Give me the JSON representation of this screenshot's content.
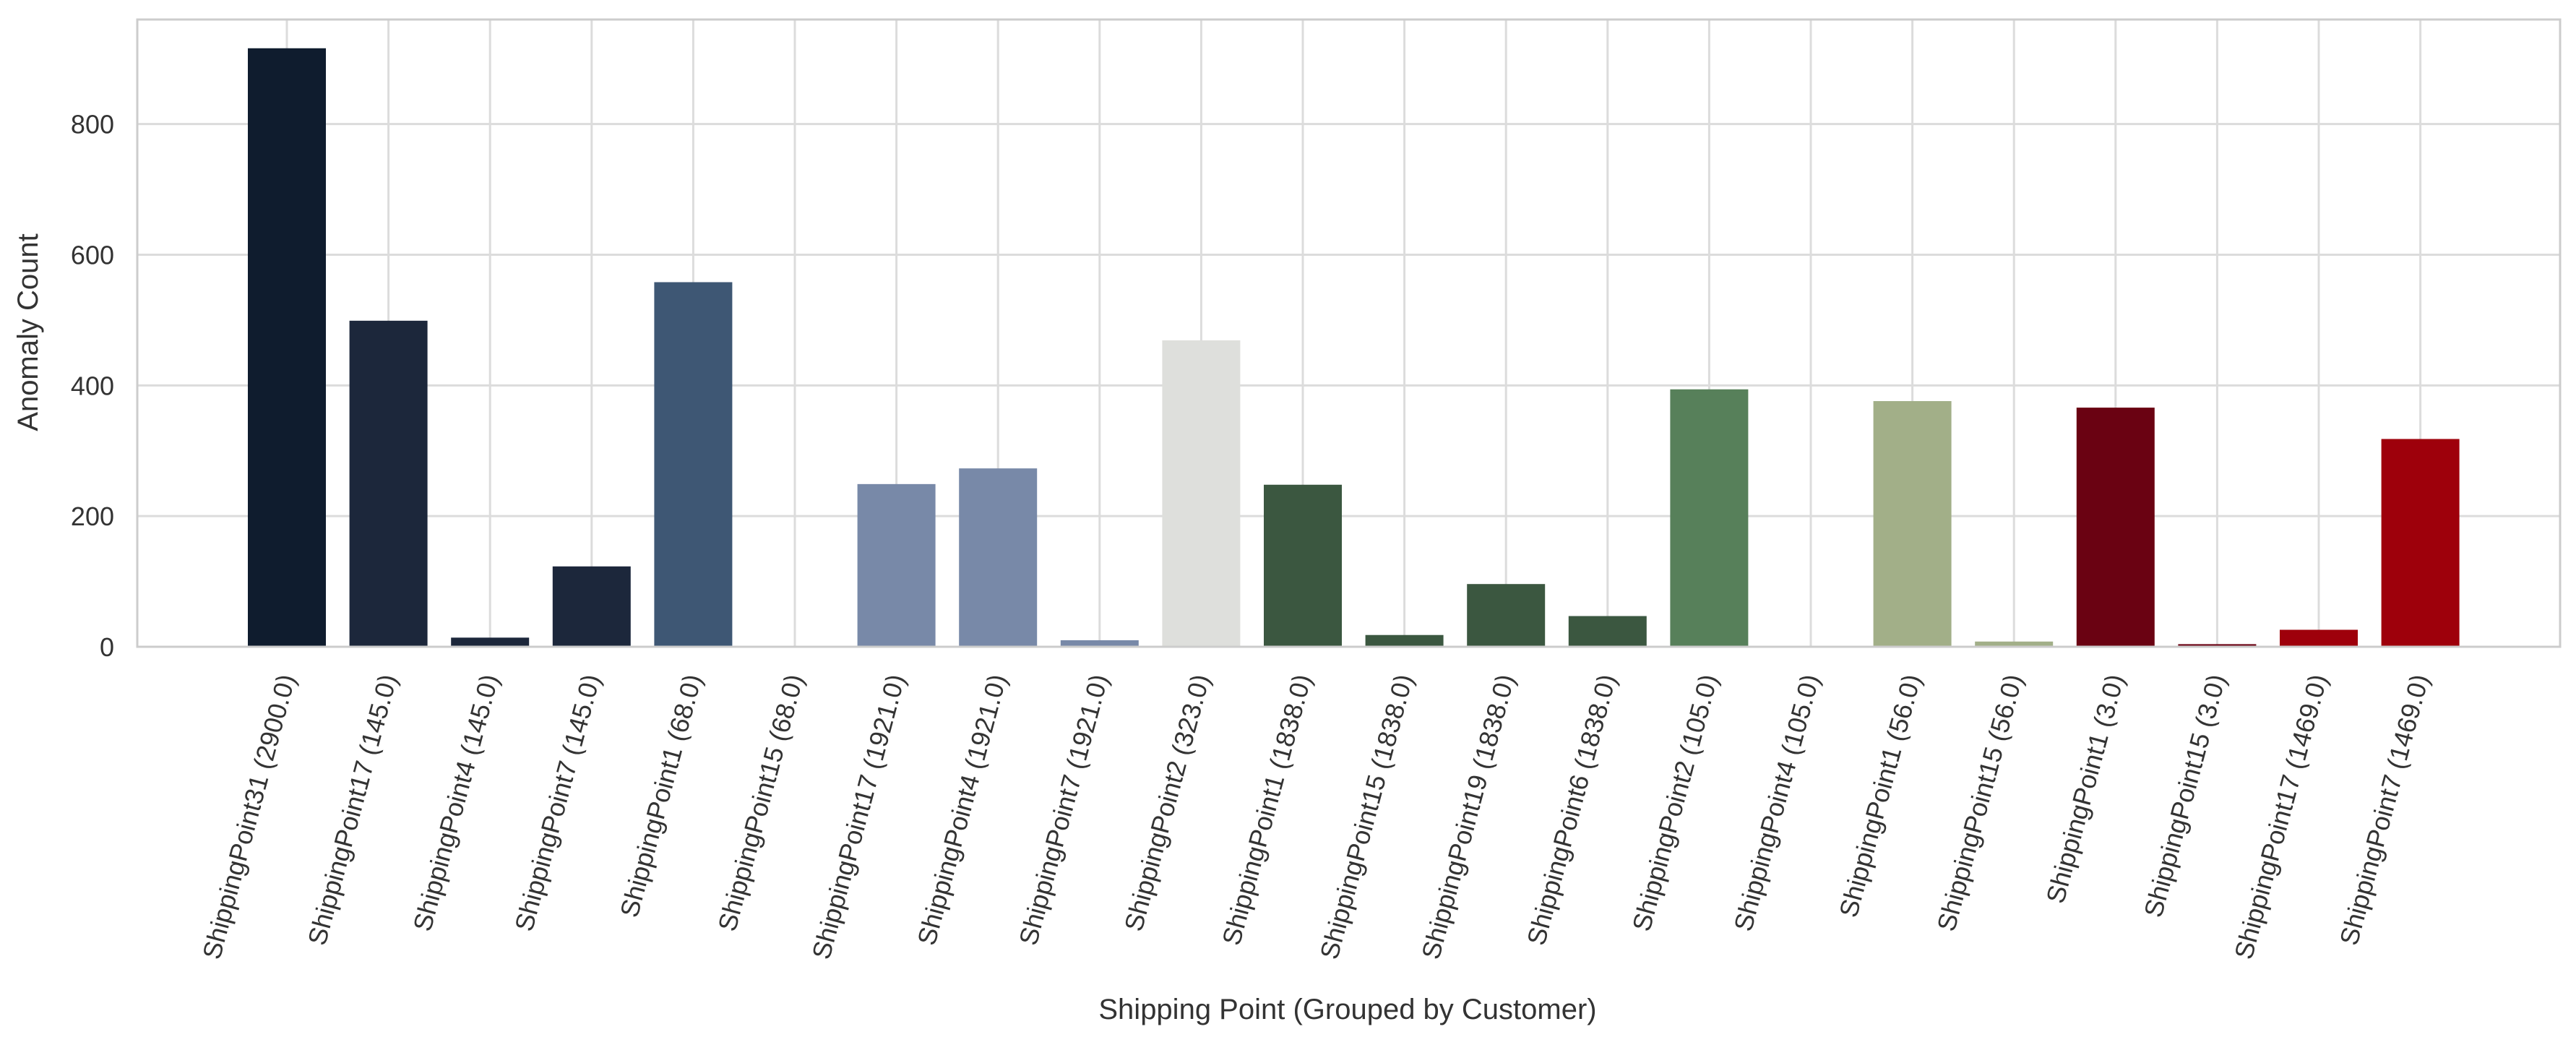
{
  "chart_data": {
    "type": "bar",
    "title": "",
    "xlabel": "Shipping Point (Grouped by Customer)",
    "ylabel": "Anomaly Count",
    "ylim": [
      0,
      960
    ],
    "yticks": [
      0,
      200,
      400,
      600,
      800
    ],
    "grid": true,
    "legend": "none",
    "categories": [
      "ShippingPoint31 (2900.0)",
      "ShippingPoint17 (145.0)",
      "ShippingPoint4 (145.0)",
      "ShippingPoint7 (145.0)",
      "ShippingPoint1 (68.0)",
      "ShippingPoint15 (68.0)",
      "ShippingPoint17 (1921.0)",
      "ShippingPoint4 (1921.0)",
      "ShippingPoint7 (1921.0)",
      "ShippingPoint2 (323.0)",
      "ShippingPoint1 (1838.0)",
      "ShippingPoint15 (1838.0)",
      "ShippingPoint19 (1838.0)",
      "ShippingPoint6 (1838.0)",
      "ShippingPoint2 (105.0)",
      "ShippingPoint4 (105.0)",
      "ShippingPoint1 (56.0)",
      "ShippingPoint15 (56.0)",
      "ShippingPoint1 (3.0)",
      "ShippingPoint15 (3.0)",
      "ShippingPoint17 (1469.0)",
      "ShippingPoint7 (1469.0)"
    ],
    "values": [
      916,
      499,
      14,
      123,
      558,
      1,
      249,
      273,
      10,
      469,
      248,
      18,
      96,
      47,
      394,
      1,
      376,
      8,
      366,
      4,
      26,
      318
    ],
    "bar_colors": [
      "#0f1c2e",
      "#1c273b",
      "#1c273b",
      "#1c273b",
      "#3e5774",
      "#3e5774",
      "#7889a8",
      "#7889a8",
      "#7889a8",
      "#dedfdc",
      "#3b5740",
      "#3b5740",
      "#3b5740",
      "#3b5740",
      "#57805a",
      "#57805a",
      "#a2af88",
      "#a2af88",
      "#6a0212",
      "#6a0212",
      "#9e000b",
      "#9e000b"
    ]
  }
}
